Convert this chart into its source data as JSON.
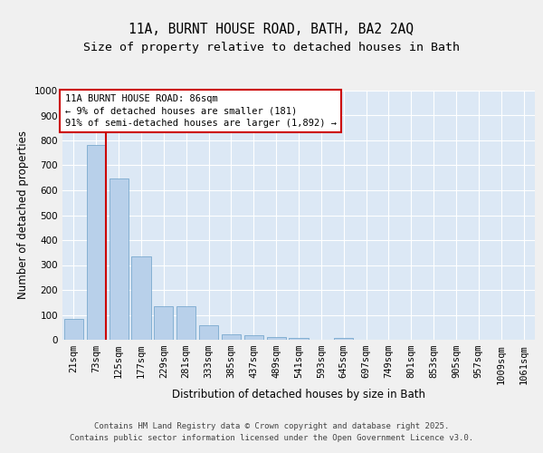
{
  "title_line1": "11A, BURNT HOUSE ROAD, BATH, BA2 2AQ",
  "title_line2": "Size of property relative to detached houses in Bath",
  "xlabel": "Distribution of detached houses by size in Bath",
  "ylabel": "Number of detached properties",
  "categories": [
    "21sqm",
    "73sqm",
    "125sqm",
    "177sqm",
    "229sqm",
    "281sqm",
    "333sqm",
    "385sqm",
    "437sqm",
    "489sqm",
    "541sqm",
    "593sqm",
    "645sqm",
    "697sqm",
    "749sqm",
    "801sqm",
    "853sqm",
    "905sqm",
    "957sqm",
    "1009sqm",
    "1061sqm"
  ],
  "values": [
    85,
    780,
    648,
    335,
    135,
    135,
    60,
    22,
    18,
    10,
    7,
    0,
    7,
    0,
    0,
    0,
    0,
    0,
    0,
    0,
    0
  ],
  "bar_color": "#b8d0ea",
  "bar_edge_color": "#6a9fc8",
  "vline_color": "#cc0000",
  "vline_x": 1.45,
  "annotation_text": "11A BURNT HOUSE ROAD: 86sqm\n← 9% of detached houses are smaller (181)\n91% of semi-detached houses are larger (1,892) →",
  "annotation_box_edge_color": "#cc0000",
  "ylim": [
    0,
    1000
  ],
  "yticks": [
    0,
    100,
    200,
    300,
    400,
    500,
    600,
    700,
    800,
    900,
    1000
  ],
  "fig_bg_color": "#f0f0f0",
  "axes_bg_color": "#dce8f5",
  "grid_color": "#ffffff",
  "footer_text": "Contains HM Land Registry data © Crown copyright and database right 2025.\nContains public sector information licensed under the Open Government Licence v3.0.",
  "title_fontsize": 10.5,
  "subtitle_fontsize": 9.5,
  "axis_label_fontsize": 8.5,
  "tick_fontsize": 7.5,
  "annotation_fontsize": 7.5,
  "footer_fontsize": 6.5
}
